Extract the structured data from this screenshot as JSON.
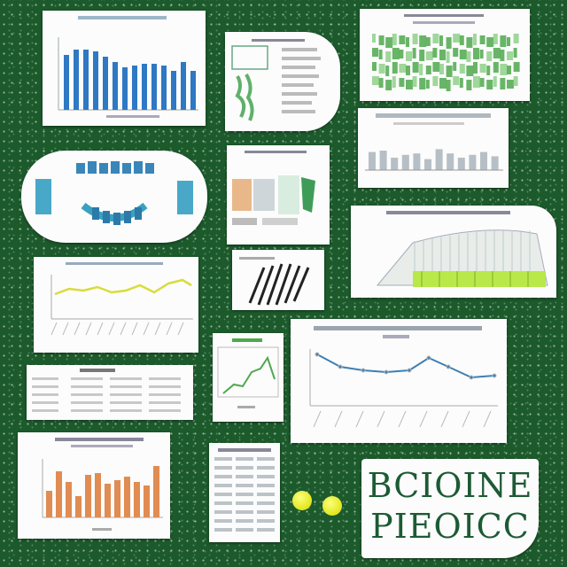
{
  "collage": {
    "background_color": "#1c5a2c",
    "accent_colors": {
      "bar_blue": "#2f78c4",
      "line_yellow": "#d9dc3a",
      "line_green": "#4fa84e",
      "line_blue": "#3f7fb4",
      "bar_orange": "#e08c52",
      "text_green": "#1d5a35",
      "lime": "#b8e84a"
    },
    "poster": {
      "line1": "BCIOINE",
      "line2": "PIEOICC"
    }
  }
}
